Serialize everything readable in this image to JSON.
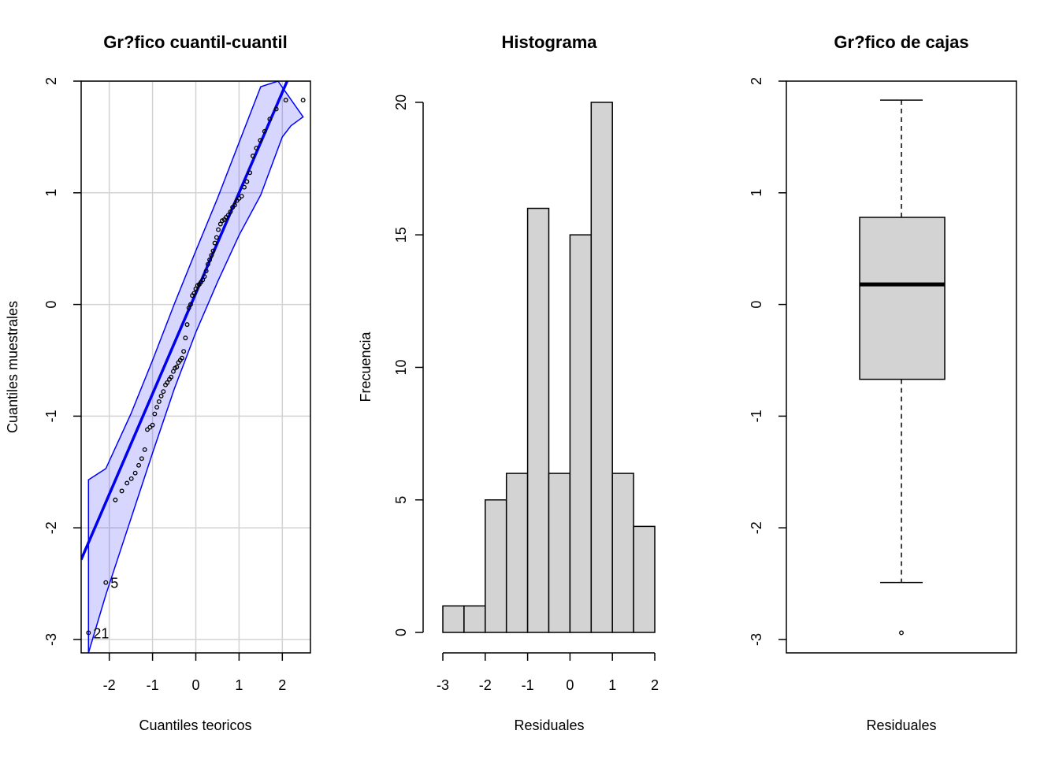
{
  "chart_data": [
    {
      "type": "scatter",
      "title": "Gr?fico cuantil-cuantil",
      "xlabel": "Cuantiles teoricos",
      "ylabel": "Cuantiles muestrales",
      "xlim": [
        -2.65,
        2.65
      ],
      "ylim": [
        -3.12,
        2.0
      ],
      "xticks": [
        -2,
        -1,
        0,
        1,
        2
      ],
      "yticks": [
        -3,
        -2,
        -1,
        0,
        1,
        2
      ],
      "grid": true,
      "reference_line": {
        "slope": 0.9,
        "intercept": 0.1,
        "color": "#0000ee"
      },
      "band_color": "#0000ff",
      "band_upper": [
        [
          -2.48,
          -1.57
        ],
        [
          -2.08,
          -1.47
        ],
        [
          -1.5,
          -0.98
        ],
        [
          -1.0,
          -0.5
        ],
        [
          -0.5,
          0.0
        ],
        [
          0.0,
          0.48
        ],
        [
          0.5,
          0.95
        ],
        [
          1.0,
          1.45
        ],
        [
          1.5,
          1.95
        ],
        [
          1.9,
          2.0
        ]
      ],
      "band_lower": [
        [
          -2.48,
          -3.12
        ],
        [
          -2.08,
          -2.6
        ],
        [
          -1.5,
          -1.92
        ],
        [
          -1.0,
          -1.33
        ],
        [
          -0.5,
          -0.76
        ],
        [
          0.0,
          -0.25
        ],
        [
          0.5,
          0.2
        ],
        [
          1.0,
          0.62
        ],
        [
          1.5,
          0.98
        ],
        [
          2.0,
          1.5
        ],
        [
          2.2,
          1.6
        ],
        [
          2.48,
          1.68
        ]
      ],
      "points": [
        [
          -2.48,
          -2.94
        ],
        [
          -2.08,
          -2.49
        ],
        [
          -1.86,
          -1.75
        ],
        [
          -1.71,
          -1.67
        ],
        [
          -1.59,
          -1.6
        ],
        [
          -1.49,
          -1.56
        ],
        [
          -1.4,
          -1.51
        ],
        [
          -1.32,
          -1.44
        ],
        [
          -1.25,
          -1.38
        ],
        [
          -1.18,
          -1.3
        ],
        [
          -1.12,
          -1.12
        ],
        [
          -1.06,
          -1.1
        ],
        [
          -1.0,
          -1.08
        ],
        [
          -0.95,
          -0.98
        ],
        [
          -0.9,
          -0.92
        ],
        [
          -0.85,
          -0.87
        ],
        [
          -0.8,
          -0.82
        ],
        [
          -0.75,
          -0.78
        ],
        [
          -0.7,
          -0.72
        ],
        [
          -0.66,
          -0.7
        ],
        [
          -0.61,
          -0.67
        ],
        [
          -0.57,
          -0.65
        ],
        [
          -0.52,
          -0.6
        ],
        [
          -0.48,
          -0.57
        ],
        [
          -0.44,
          -0.56
        ],
        [
          -0.4,
          -0.52
        ],
        [
          -0.36,
          -0.5
        ],
        [
          -0.32,
          -0.48
        ],
        [
          -0.28,
          -0.42
        ],
        [
          -0.24,
          -0.3
        ],
        [
          -0.2,
          -0.18
        ],
        [
          -0.16,
          -0.03
        ],
        [
          -0.12,
          0.0
        ],
        [
          -0.08,
          0.08
        ],
        [
          -0.04,
          0.1
        ],
        [
          0.0,
          0.14
        ],
        [
          0.04,
          0.17
        ],
        [
          0.08,
          0.18
        ],
        [
          0.12,
          0.2
        ],
        [
          0.16,
          0.22
        ],
        [
          0.2,
          0.25
        ],
        [
          0.24,
          0.3
        ],
        [
          0.28,
          0.36
        ],
        [
          0.32,
          0.4
        ],
        [
          0.36,
          0.44
        ],
        [
          0.4,
          0.48
        ],
        [
          0.44,
          0.55
        ],
        [
          0.48,
          0.6
        ],
        [
          0.52,
          0.67
        ],
        [
          0.57,
          0.72
        ],
        [
          0.61,
          0.75
        ],
        [
          0.66,
          0.76
        ],
        [
          0.7,
          0.78
        ],
        [
          0.75,
          0.8
        ],
        [
          0.8,
          0.83
        ],
        [
          0.85,
          0.87
        ],
        [
          0.9,
          0.89
        ],
        [
          0.95,
          0.93
        ],
        [
          1.0,
          0.95
        ],
        [
          1.06,
          0.97
        ],
        [
          1.12,
          1.05
        ],
        [
          1.18,
          1.1
        ],
        [
          1.25,
          1.18
        ],
        [
          1.32,
          1.33
        ],
        [
          1.4,
          1.4
        ],
        [
          1.49,
          1.47
        ],
        [
          1.59,
          1.55
        ],
        [
          1.71,
          1.66
        ],
        [
          1.86,
          1.75
        ],
        [
          2.08,
          1.83
        ],
        [
          2.48,
          1.83
        ]
      ],
      "point_labels": [
        {
          "x": -2.48,
          "y": -2.94,
          "text": "21"
        },
        {
          "x": -2.08,
          "y": -2.49,
          "text": "5"
        }
      ]
    },
    {
      "type": "bar",
      "title": "Histograma",
      "xlabel": "Residuales",
      "ylabel": "Frecuencia",
      "bin_edges": [
        -3,
        -2.5,
        -2,
        -1.5,
        -1,
        -0.5,
        0,
        0.5,
        1,
        1.5,
        2
      ],
      "values": [
        1,
        1,
        5,
        6,
        16,
        6,
        15,
        20,
        6,
        4
      ],
      "xlim": [
        -3,
        2
      ],
      "ylim": [
        0,
        20.8
      ],
      "xticks": [
        -3,
        -2,
        -1,
        0,
        1,
        2
      ],
      "yticks": [
        0,
        5,
        10,
        15,
        20
      ],
      "bar_color": "#d3d3d3"
    },
    {
      "type": "box",
      "title": "Gr?fico de cajas",
      "xlabel": "Residuales",
      "ylabel": "",
      "ylim": [
        -3.12,
        2.0
      ],
      "yticks": [
        -3,
        -2,
        -1,
        0,
        1,
        2
      ],
      "whisker_low": -2.49,
      "q1": -0.67,
      "median": 0.18,
      "q3": 0.78,
      "whisker_high": 1.83,
      "outliers": [
        -2.94
      ],
      "box_color": "#d3d3d3"
    }
  ]
}
